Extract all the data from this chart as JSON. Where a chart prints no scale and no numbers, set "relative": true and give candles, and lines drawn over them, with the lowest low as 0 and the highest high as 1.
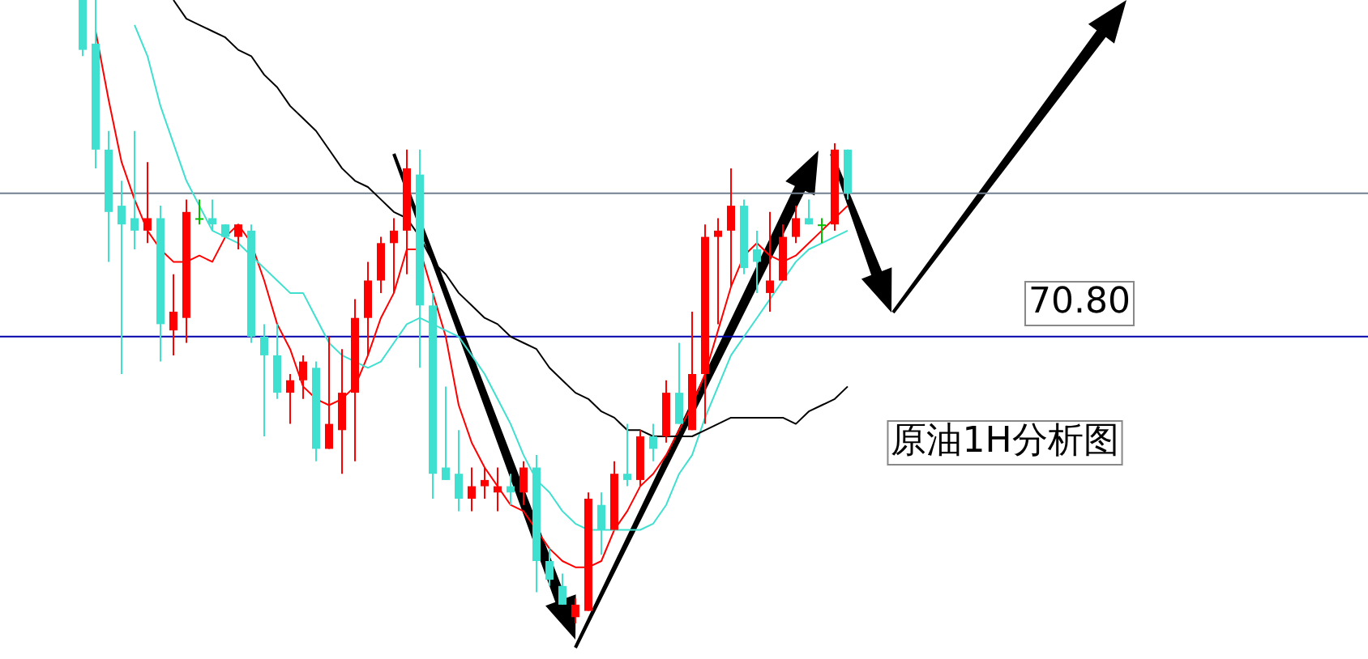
{
  "chart_data": {
    "type": "candlestick",
    "relative": true,
    "categories": [
      null,
      null,
      null,
      null,
      null,
      null,
      null,
      null,
      null,
      null,
      null,
      null,
      null,
      null,
      null,
      null,
      null,
      null,
      null,
      null,
      null,
      null,
      null,
      null,
      null,
      null,
      null,
      null,
      null,
      null,
      null,
      null,
      null,
      null,
      null,
      null,
      null,
      null,
      null,
      null,
      null,
      null,
      null,
      null,
      null,
      null,
      null,
      null,
      null,
      null,
      null,
      null,
      null,
      null,
      null,
      null,
      null,
      null,
      null,
      null
    ],
    "ohlc": [
      [
        1,
        1,
        0.91,
        0.92
      ],
      [
        0.93,
        1,
        0.73,
        0.76
      ],
      [
        0.76,
        0.79,
        0.58,
        0.66
      ],
      [
        0.67,
        0.71,
        0.4,
        0.64
      ],
      [
        0.65,
        0.79,
        0.6,
        0.63
      ],
      [
        0.63,
        0.74,
        0.61,
        0.65
      ],
      [
        0.65,
        0.67,
        0.42,
        0.48
      ],
      [
        0.47,
        0.56,
        0.43,
        0.5
      ],
      [
        0.49,
        0.68,
        0.45,
        0.66
      ],
      [
        0.65,
        0.68,
        0.64,
        0.65
      ],
      [
        0.65,
        0.68,
        0.63,
        0.64
      ],
      [
        0.64,
        0.64,
        0.62,
        0.62
      ],
      [
        0.62,
        0.64,
        0.6,
        0.64
      ],
      [
        0.63,
        0.64,
        0.45,
        0.46
      ],
      [
        0.46,
        0.48,
        0.3,
        0.43
      ],
      [
        0.43,
        0.48,
        0.36,
        0.37
      ],
      [
        0.37,
        0.4,
        0.32,
        0.39
      ],
      [
        0.39,
        0.43,
        0.36,
        0.42
      ],
      [
        0.41,
        0.42,
        0.26,
        0.28
      ],
      [
        0.28,
        0.46,
        0.28,
        0.32
      ],
      [
        0.31,
        0.44,
        0.24,
        0.37
      ],
      [
        0.37,
        0.52,
        0.26,
        0.49
      ],
      [
        0.49,
        0.58,
        0.43,
        0.55
      ],
      [
        0.55,
        0.62,
        0.53,
        0.61
      ],
      [
        0.61,
        0.65,
        0.53,
        0.63
      ],
      [
        0.63,
        0.76,
        0.56,
        0.73
      ],
      [
        0.72,
        0.76,
        0.41,
        0.51
      ],
      [
        0.51,
        0.53,
        0.2,
        0.24
      ],
      [
        0.25,
        0.38,
        0.23,
        0.23
      ],
      [
        0.24,
        0.31,
        0.18,
        0.2
      ],
      [
        0.2,
        0.25,
        0.18,
        0.22
      ],
      [
        0.22,
        0.25,
        0.2,
        0.23
      ],
      [
        0.21,
        0.25,
        0.18,
        0.22
      ],
      [
        0.22,
        0.24,
        0.19,
        0.21
      ],
      [
        0.21,
        0.26,
        0.19,
        0.25
      ],
      [
        0.25,
        0.27,
        0.05,
        0.1
      ],
      [
        0.1,
        0.12,
        0.06,
        0.07
      ],
      [
        0.06,
        0.08,
        0.03,
        0.03
      ],
      [
        0.01,
        0.04,
        0,
        0.03
      ],
      [
        0.02,
        0.21,
        0.02,
        0.2
      ],
      [
        0.19,
        0.21,
        0.11,
        0.15
      ],
      [
        0.15,
        0.26,
        0.15,
        0.24
      ],
      [
        0.24,
        0.32,
        0.22,
        0.23
      ],
      [
        0.23,
        0.31,
        0.22,
        0.3
      ],
      [
        0.3,
        0.32,
        0.26,
        0.28
      ],
      [
        0.3,
        0.39,
        0.29,
        0.37
      ],
      [
        0.37,
        0.45,
        0.32,
        0.32
      ],
      [
        0.31,
        0.5,
        0.31,
        0.4
      ],
      [
        0.4,
        0.64,
        0.32,
        0.62
      ],
      [
        0.62,
        0.65,
        0.48,
        0.63
      ],
      [
        0.63,
        0.73,
        0.54,
        0.67
      ],
      [
        0.67,
        0.68,
        0.56,
        0.57
      ],
      [
        0.6,
        0.63,
        0.53,
        0.58
      ],
      [
        0.53,
        0.66,
        0.5,
        0.55
      ],
      [
        0.55,
        0.64,
        0.55,
        0.62
      ],
      [
        0.62,
        0.67,
        0.61,
        0.65
      ],
      [
        0.65,
        0.68,
        0.64,
        0.64
      ],
      [
        0.64,
        0.65,
        0.61,
        0.64
      ],
      [
        0.64,
        0.77,
        0.63,
        0.76
      ],
      [
        0.76,
        0.76,
        0.68,
        0.69
      ]
    ],
    "colors": [
      "#40e0d0",
      "#40e0d0",
      "#40e0d0",
      "#40e0d0",
      "#40e0d0",
      "#ff0000",
      "#40e0d0",
      "#ff0000",
      "#ff0000",
      "#00c000",
      "#40e0d0",
      "#40e0d0",
      "#ff0000",
      "#40e0d0",
      "#40e0d0",
      "#40e0d0",
      "#ff0000",
      "#ff0000",
      "#40e0d0",
      "#ff0000",
      "#ff0000",
      "#ff0000",
      "#ff0000",
      "#ff0000",
      "#ff0000",
      "#ff0000",
      "#40e0d0",
      "#40e0d0",
      "#40e0d0",
      "#40e0d0",
      "#ff0000",
      "#ff0000",
      "#ff0000",
      "#40e0d0",
      "#ff0000",
      "#40e0d0",
      "#40e0d0",
      "#40e0d0",
      "#ff0000",
      "#ff0000",
      "#40e0d0",
      "#ff0000",
      "#40e0d0",
      "#ff0000",
      "#40e0d0",
      "#ff0000",
      "#40e0d0",
      "#ff0000",
      "#ff0000",
      "#ff0000",
      "#ff0000",
      "#40e0d0",
      "#40e0d0",
      "#ff0000",
      "#ff0000",
      "#ff0000",
      "#40e0d0",
      "#00c000",
      "#ff0000",
      "#40e0d0"
    ],
    "series": [
      {
        "type": "line",
        "color": "#ff0000",
        "values": [
          null,
          0.95,
          0.84,
          0.74,
          0.68,
          0.63,
          0.6,
          0.58,
          0.58,
          0.59,
          0.58,
          0.62,
          0.64,
          0.61,
          0.55,
          0.48,
          0.44,
          0.38,
          0.36,
          0.35,
          0.36,
          0.38,
          0.43,
          0.49,
          0.53,
          0.6,
          0.6,
          0.53,
          0.46,
          0.35,
          0.29,
          0.25,
          0.22,
          0.19,
          0.18,
          0.15,
          0.12,
          0.1,
          0.09,
          0.09,
          0.1,
          0.15,
          0.18,
          0.22,
          0.24,
          0.27,
          0.31,
          0.35,
          0.4,
          0.47,
          0.54,
          0.59,
          0.61,
          0.59,
          0.58,
          0.59,
          0.61,
          0.63,
          0.65,
          0.67
        ]
      },
      {
        "type": "line",
        "color": "#40e0d0",
        "values": [
          null,
          null,
          null,
          null,
          0.96,
          0.91,
          0.83,
          0.77,
          0.71,
          0.67,
          0.63,
          0.62,
          0.61,
          0.59,
          0.57,
          0.55,
          0.53,
          0.53,
          0.49,
          0.45,
          0.43,
          0.42,
          0.41,
          0.42,
          0.45,
          0.48,
          0.49,
          0.48,
          0.47,
          0.46,
          0.43,
          0.4,
          0.36,
          0.32,
          0.27,
          0.23,
          0.21,
          0.18,
          0.16,
          0.15,
          0.15,
          0.15,
          0.15,
          0.15,
          0.16,
          0.19,
          0.24,
          0.27,
          0.33,
          0.38,
          0.43,
          0.46,
          0.49,
          0.52,
          0.55,
          0.58,
          0.6,
          0.61,
          0.62,
          0.63
        ]
      },
      {
        "type": "line",
        "color": "#000000",
        "values": [
          null,
          null,
          null,
          null,
          null,
          null,
          null,
          1,
          0.97,
          0.96,
          0.95,
          0.94,
          0.92,
          0.91,
          0.88,
          0.86,
          0.83,
          0.81,
          0.79,
          0.76,
          0.73,
          0.71,
          0.7,
          0.68,
          0.66,
          0.65,
          0.62,
          0.58,
          0.56,
          0.53,
          0.51,
          0.49,
          0.48,
          0.46,
          0.45,
          0.44,
          0.41,
          0.39,
          0.37,
          0.36,
          0.34,
          0.33,
          0.31,
          0.31,
          0.3,
          0.3,
          0.3,
          0.3,
          0.31,
          0.32,
          0.33,
          0.33,
          0.33,
          0.33,
          0.33,
          0.32,
          0.34,
          0.35,
          0.36,
          0.38
        ]
      }
    ],
    "ref_lines": [
      {
        "axis": "y",
        "value": 0.69,
        "color": "#708090"
      },
      {
        "axis": "y",
        "value": 0.46,
        "color": "#0000aa"
      }
    ],
    "annotations": [
      "70.80",
      "原油1H分析图"
    ]
  }
}
